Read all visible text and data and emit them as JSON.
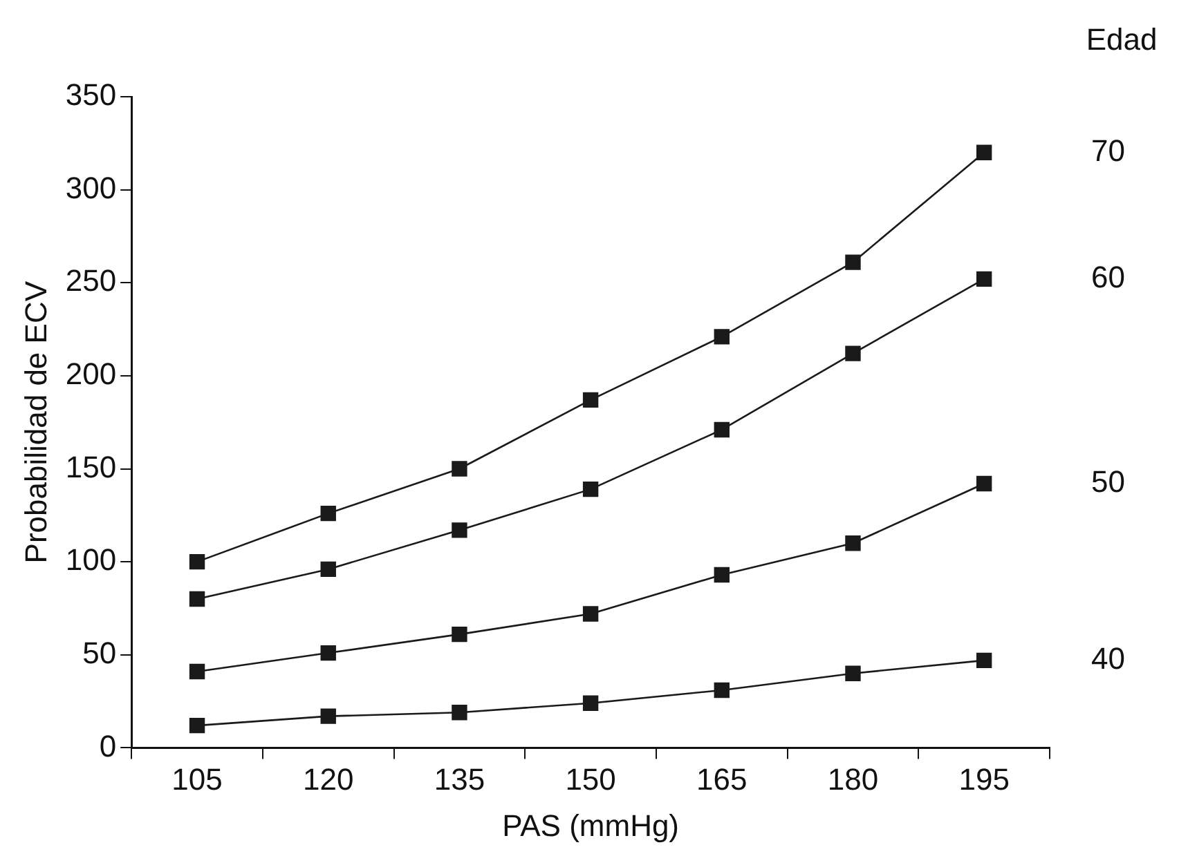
{
  "chart_data": {
    "type": "line",
    "xlabel": "PAS (mmHg)",
    "ylabel": "Probabilidad de ECV",
    "legend_title": "Edad",
    "categories": [
      "105",
      "120",
      "135",
      "150",
      "165",
      "180",
      "195"
    ],
    "series": [
      {
        "name": "70",
        "color": "#1a1a1a",
        "values": [
          100,
          126,
          150,
          187,
          221,
          261,
          320
        ]
      },
      {
        "name": "60",
        "color": "#1a1a1a",
        "values": [
          80,
          96,
          117,
          139,
          171,
          212,
          252
        ]
      },
      {
        "name": "50",
        "color": "#1a1a1a",
        "values": [
          41,
          51,
          61,
          72,
          93,
          110,
          142
        ]
      },
      {
        "name": "40",
        "color": "#1a1a1a",
        "values": [
          12,
          17,
          19,
          24,
          31,
          40,
          47
        ]
      }
    ],
    "ylim": [
      0,
      350
    ],
    "yticks": [
      0,
      50,
      100,
      150,
      200,
      250,
      300,
      350
    ],
    "grid": false,
    "legend": false,
    "marker": "square",
    "line_style": "solid"
  }
}
